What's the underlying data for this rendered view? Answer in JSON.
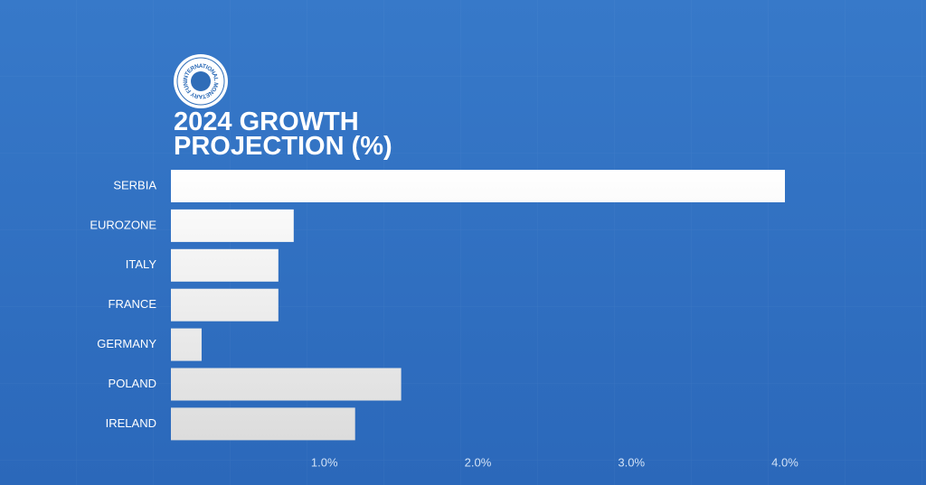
{
  "chart_data": {
    "type": "hbar",
    "logo_text": "INTERNATIONAL MONETARY FUND",
    "title": "2024 GROWTH PROJECTION (%)",
    "categories": [
      "SERBIA",
      "EUROZONE",
      "ITALY",
      "FRANCE",
      "GERMANY",
      "POLAND",
      "IRELAND"
    ],
    "values": [
      4.0,
      0.8,
      0.7,
      0.7,
      0.2,
      1.5,
      1.2
    ],
    "color": "#ffffff",
    "xlim": [
      0,
      4
    ],
    "xticks": [
      {
        "value": 1,
        "label": "1.0%"
      },
      {
        "value": 2,
        "label": "2.0%"
      },
      {
        "value": 3,
        "label": "3.0%"
      },
      {
        "value": 4,
        "label": "4.0%"
      }
    ]
  }
}
